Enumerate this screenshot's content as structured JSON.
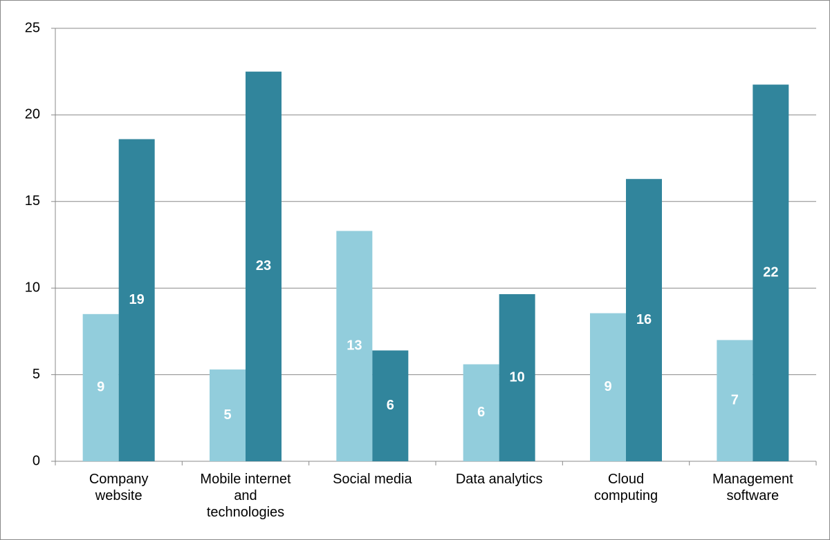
{
  "chart_data": {
    "type": "bar",
    "categories": [
      "Company website",
      "Mobile internet and technologies",
      "Social media",
      "Data analytics",
      "Cloud computing",
      "Management software"
    ],
    "series": [
      {
        "color": "#92cddc",
        "values": [
          8.5,
          5.3,
          13.3,
          5.6,
          8.55,
          7.0
        ],
        "value_labels": [
          "9",
          "5",
          "13",
          "6",
          "9",
          "7"
        ]
      },
      {
        "color": "#31859c",
        "values": [
          18.6,
          22.5,
          6.4,
          9.65,
          16.3,
          21.75
        ],
        "value_labels": [
          "19",
          "23",
          "6",
          "10",
          "16",
          "22"
        ]
      }
    ],
    "ylim": [
      0,
      25
    ],
    "yticks": [
      0,
      5,
      10,
      15,
      20,
      25
    ],
    "grid": true
  }
}
